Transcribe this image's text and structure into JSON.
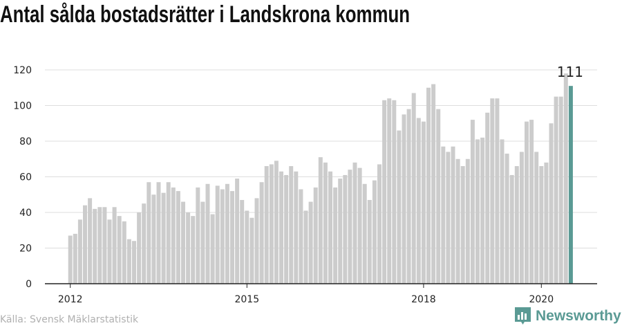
{
  "title": "Antal sålda bostadsrätter i Landskrona kommun",
  "source": "Källa: Svensk Mäklarstatistik",
  "brand": {
    "name": "Newsworthy",
    "icon": "newsworthy-logo-icon",
    "color": "#5a9a94"
  },
  "colors": {
    "bar": "#cccccc",
    "highlight": "#5a9a94",
    "grid": "#dddddd",
    "axis": "#222222"
  },
  "chart_data": {
    "type": "bar",
    "title": "Antal sålda bostadsrätter i Landskrona kommun",
    "xlabel": "",
    "ylabel": "",
    "ylim": [
      0,
      120
    ],
    "yticks": [
      "0",
      "20",
      "40",
      "60",
      "80",
      "100",
      "120"
    ],
    "xticks": [
      {
        "label": "2012",
        "index": 0
      },
      {
        "label": "2015",
        "index": 36
      },
      {
        "label": "2018",
        "index": 72
      },
      {
        "label": "2020",
        "index": 96
      }
    ],
    "start": "2012-01",
    "values": [
      27,
      28,
      36,
      44,
      48,
      42,
      43,
      43,
      36,
      43,
      38,
      35,
      25,
      24,
      40,
      45,
      57,
      50,
      57,
      51,
      57,
      54,
      52,
      46,
      40,
      38,
      54,
      46,
      56,
      39,
      55,
      53,
      56,
      52,
      59,
      47,
      41,
      37,
      48,
      57,
      66,
      67,
      69,
      63,
      61,
      66,
      63,
      53,
      41,
      46,
      54,
      71,
      68,
      63,
      54,
      59,
      61,
      64,
      68,
      65,
      56,
      47,
      58,
      67,
      103,
      104,
      103,
      86,
      95,
      98,
      107,
      93,
      91,
      110,
      112,
      98,
      77,
      74,
      77,
      70,
      66,
      70,
      92,
      81,
      82,
      96,
      104,
      104,
      81,
      73,
      61,
      66,
      74,
      91,
      92,
      74,
      66,
      68,
      90,
      105,
      105,
      118,
      111
    ],
    "highlight": {
      "index": 102,
      "label": "111",
      "value": 111
    }
  }
}
